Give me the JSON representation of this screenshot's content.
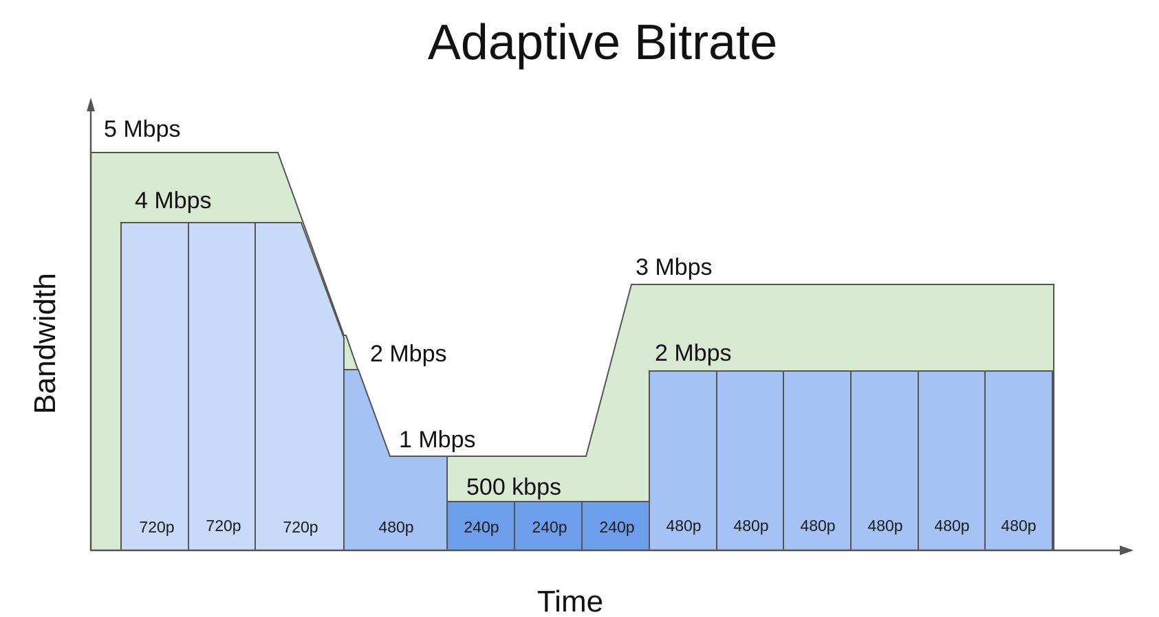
{
  "title": "Adaptive Bitrate",
  "x_axis_label": "Time",
  "y_axis_label": "Bandwidth",
  "bandwidth_labels": [
    {
      "id": "5mbps",
      "text": "5 Mbps"
    },
    {
      "id": "4mbps",
      "text": "4 Mbps"
    },
    {
      "id": "2mbps-a",
      "text": "2 Mbps"
    },
    {
      "id": "1mbps",
      "text": "1 Mbps"
    },
    {
      "id": "500kbps",
      "text": "500 kbps"
    },
    {
      "id": "3mbps",
      "text": "3 Mbps"
    },
    {
      "id": "2mbps-b",
      "text": "2 Mbps"
    }
  ],
  "segments": [
    {
      "label": "720p"
    },
    {
      "label": "720p"
    },
    {
      "label": "720p"
    },
    {
      "label": "480p"
    },
    {
      "label": "240p"
    },
    {
      "label": "240p"
    },
    {
      "label": "240p"
    },
    {
      "label": "480p"
    },
    {
      "label": "480p"
    },
    {
      "label": "480p"
    },
    {
      "label": "480p"
    },
    {
      "label": "480p"
    },
    {
      "label": "480p"
    }
  ],
  "colors": {
    "bandwidth_fill": "#d9ead3",
    "seg_720p": "#c9daf8",
    "seg_480p": "#a4c2f4",
    "seg_240p": "#6d9eeb",
    "outline": "#555555",
    "text": "#111111"
  }
}
